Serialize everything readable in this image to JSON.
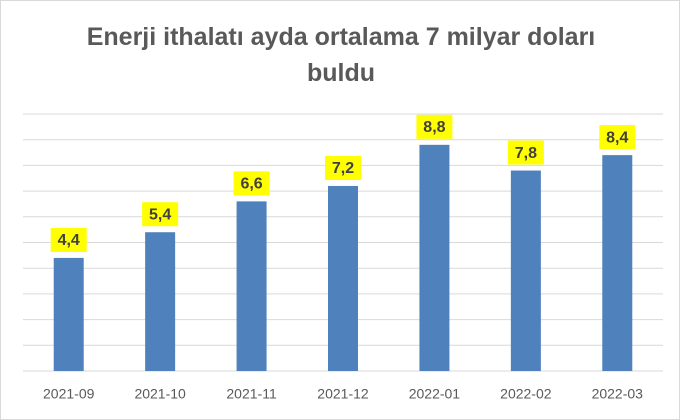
{
  "chart_data": {
    "type": "bar",
    "title": "Enerji ithalatı ayda ortalama 7 milyar doları buldu",
    "categories": [
      "2021-09",
      "2021-10",
      "2021-11",
      "2021-12",
      "2022-01",
      "2022-02",
      "2022-03"
    ],
    "values": [
      4.4,
      5.4,
      6.6,
      7.2,
      8.8,
      7.8,
      8.4
    ],
    "value_labels": [
      "4,4",
      "5,4",
      "6,6",
      "7,2",
      "8,8",
      "7,8",
      "8,4"
    ],
    "color": "#4f81bd",
    "ylim": [
      0,
      10
    ],
    "yticks": [
      0,
      1,
      2,
      3,
      4,
      5,
      6,
      7,
      8,
      9,
      10
    ],
    "grid": true
  }
}
